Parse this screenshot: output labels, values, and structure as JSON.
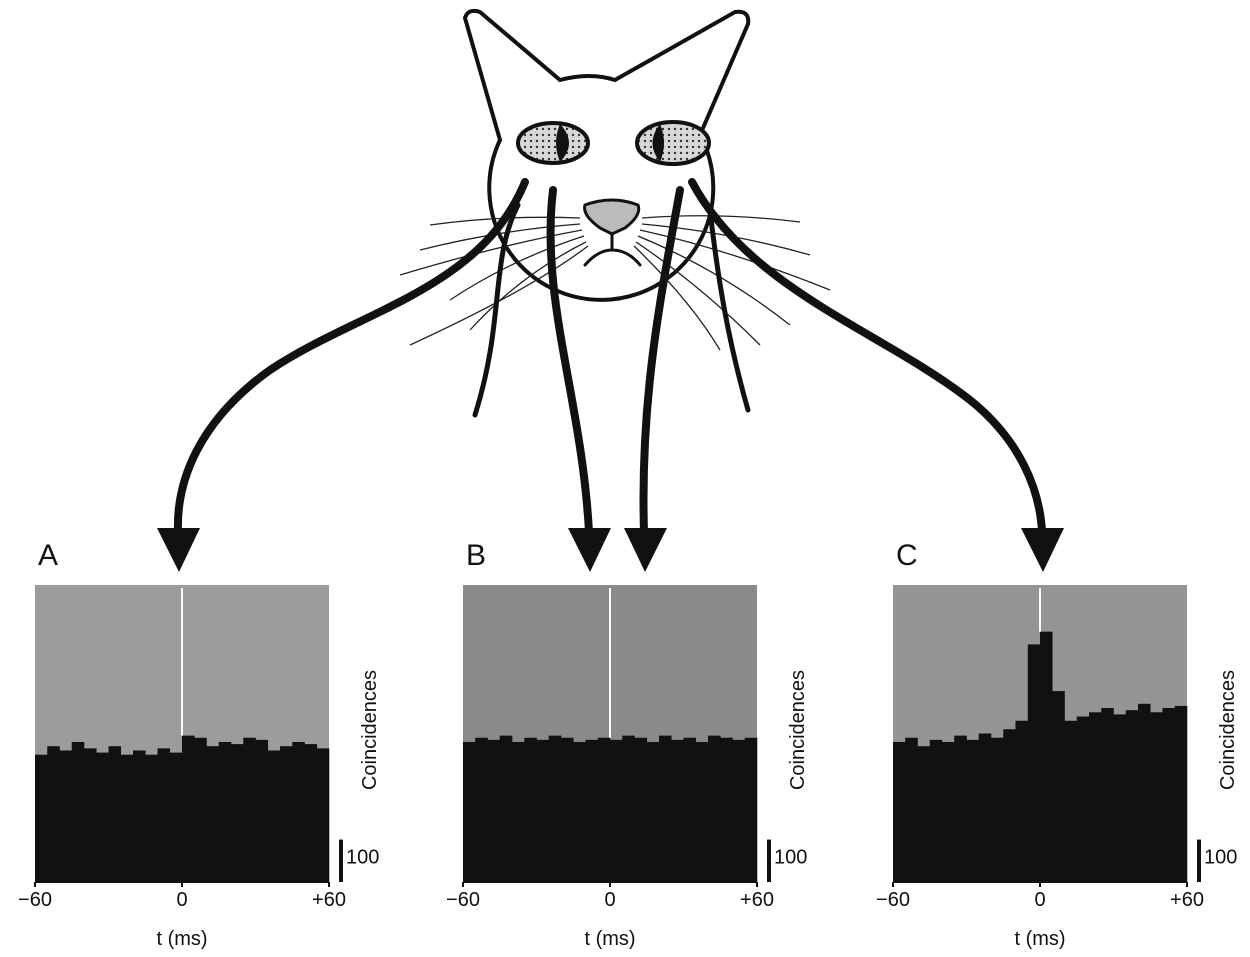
{
  "chart_data": [
    {
      "type": "histogram",
      "title": "A",
      "x_label": "t (ms)",
      "y_label": "Coincidences",
      "bins": [
        -60,
        -55,
        -50,
        -45,
        -40,
        -35,
        -30,
        -25,
        -20,
        -15,
        -10,
        -5,
        0,
        5,
        10,
        15,
        20,
        25,
        30,
        35,
        40,
        45,
        50,
        55,
        60
      ],
      "values": [
        300,
        320,
        310,
        330,
        315,
        305,
        320,
        300,
        310,
        300,
        315,
        305,
        345,
        340,
        320,
        330,
        325,
        340,
        335,
        310,
        320,
        330,
        325,
        315
      ],
      "xlim": [
        -60,
        60
      ],
      "xticks": [
        {
          "value": -60,
          "label": "−60"
        },
        0,
        {
          "value": 60,
          "label": "+60"
        }
      ],
      "ylim": [
        0,
        700
      ],
      "scale_bar": 100,
      "color": "#111111",
      "plot_color": "#9c9c9c",
      "zero_line_color": "#ffffff"
    },
    {
      "type": "histogram",
      "title": "B",
      "x_label": "t (ms)",
      "y_label": "Coincidences",
      "bins": [
        -60,
        -55,
        -50,
        -45,
        -40,
        -35,
        -30,
        -25,
        -20,
        -15,
        -10,
        -5,
        0,
        5,
        10,
        15,
        20,
        25,
        30,
        35,
        40,
        45,
        50,
        55,
        60
      ],
      "values": [
        330,
        340,
        335,
        345,
        330,
        340,
        335,
        345,
        340,
        330,
        335,
        340,
        335,
        345,
        340,
        330,
        345,
        335,
        340,
        330,
        345,
        340,
        335,
        340
      ],
      "xlim": [
        -60,
        60
      ],
      "xticks": [
        {
          "value": -60,
          "label": "−60"
        },
        0,
        {
          "value": 60,
          "label": "+60"
        }
      ],
      "ylim": [
        0,
        700
      ],
      "scale_bar": 100,
      "color": "#111111",
      "plot_color": "#8a8a8a",
      "zero_line_color": "#ffffff"
    },
    {
      "type": "histogram",
      "title": "C",
      "x_label": "t (ms)",
      "y_label": "Coincidences",
      "bins": [
        -60,
        -55,
        -50,
        -45,
        -40,
        -35,
        -30,
        -25,
        -20,
        -15,
        -10,
        -5,
        0,
        5,
        10,
        15,
        20,
        25,
        30,
        35,
        40,
        45,
        50,
        55,
        60
      ],
      "values": [
        330,
        340,
        320,
        335,
        330,
        345,
        335,
        350,
        340,
        360,
        380,
        560,
        590,
        450,
        380,
        390,
        400,
        410,
        395,
        405,
        420,
        400,
        410,
        415
      ],
      "xlim": [
        -60,
        60
      ],
      "xticks": [
        {
          "value": -60,
          "label": "−60"
        },
        0,
        {
          "value": 60,
          "label": "+60"
        }
      ],
      "ylim": [
        0,
        700
      ],
      "scale_bar": 100,
      "color": "#111111",
      "plot_color": "#959595",
      "zero_line_color": "#ffffff"
    }
  ]
}
